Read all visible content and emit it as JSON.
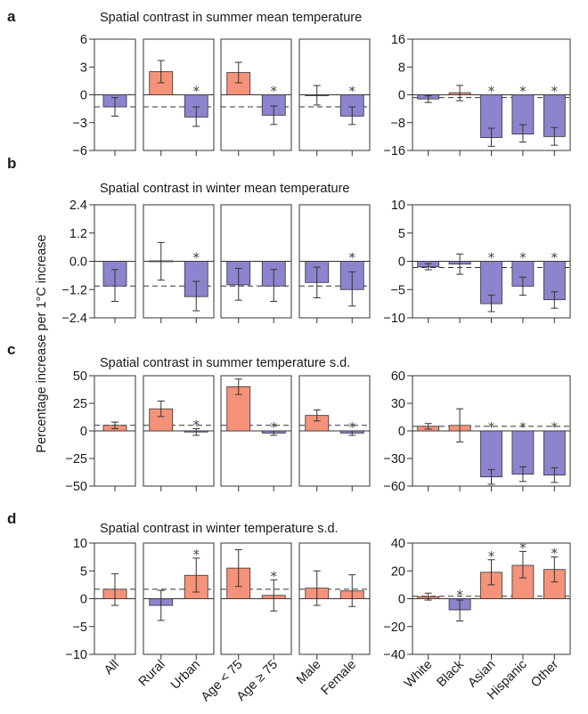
{
  "colors": {
    "positive_bar": "#f4937a",
    "negative_bar": "#8c84cc",
    "neutral_bar": "#f4937a",
    "axis": "#333333"
  },
  "y_axis_label": "Percentage increase per 1°C increase",
  "categories": [
    "All",
    "Rural",
    "Urban",
    "Age < 75",
    "Age ≥ 75",
    "Male",
    "Female",
    "White",
    "Black",
    "Asian",
    "Hispanic",
    "Other"
  ],
  "groups": [
    [
      "All"
    ],
    [
      "Rural",
      "Urban"
    ],
    [
      "Age < 75",
      "Age ≥ 75"
    ],
    [
      "Male",
      "Female"
    ],
    [
      "White",
      "Black",
      "Asian",
      "Hispanic",
      "Other"
    ]
  ],
  "chart_data": [
    {
      "type": "bar",
      "panel": "a",
      "title": "Spatial contrast in summer mean temperature",
      "left_ylim": [
        -6,
        6
      ],
      "left_yticks": [
        6,
        3,
        0,
        -3,
        -6
      ],
      "right_ylim": [
        -16,
        16
      ],
      "right_yticks": [
        16,
        8,
        0,
        -8,
        -16
      ],
      "reference_left": -1.3,
      "reference_right": -0.8,
      "bars": [
        {
          "category": "All",
          "value": -1.3,
          "ci_low": -2.3,
          "ci_high": -0.3,
          "significant": false
        },
        {
          "category": "Rural",
          "value": 2.5,
          "ci_low": 1.3,
          "ci_high": 3.7,
          "significant": false
        },
        {
          "category": "Urban",
          "value": -2.4,
          "ci_low": -3.4,
          "ci_high": -1.3,
          "significant": true
        },
        {
          "category": "Age < 75",
          "value": 2.4,
          "ci_low": 1.3,
          "ci_high": 3.5,
          "significant": false
        },
        {
          "category": "Age ≥ 75",
          "value": -2.2,
          "ci_low": -3.2,
          "ci_high": -1.2,
          "significant": true
        },
        {
          "category": "Male",
          "value": -0.05,
          "ci_low": -1.1,
          "ci_high": 1.0,
          "significant": false
        },
        {
          "category": "Female",
          "value": -2.3,
          "ci_low": -3.2,
          "ci_high": -1.3,
          "significant": true
        },
        {
          "category": "White",
          "value": -1.2,
          "ci_low": -2.2,
          "ci_high": -0.3,
          "significant": false
        },
        {
          "category": "Black",
          "value": 0.6,
          "ci_low": -1.7,
          "ci_high": 2.7,
          "significant": false
        },
        {
          "category": "Asian",
          "value": -12.3,
          "ci_low": -14.8,
          "ci_high": -9.6,
          "significant": true
        },
        {
          "category": "Hispanic",
          "value": -11.3,
          "ci_low": -13.6,
          "ci_high": -8.6,
          "significant": true
        },
        {
          "category": "Other",
          "value": -12.0,
          "ci_low": -14.5,
          "ci_high": -9.4,
          "significant": true
        }
      ]
    },
    {
      "type": "bar",
      "panel": "b",
      "title": "Spatial contrast in winter mean temperature",
      "left_ylim": [
        -2.4,
        2.4
      ],
      "left_yticks": [
        2.4,
        1.2,
        0.0,
        -1.2,
        -2.4
      ],
      "right_ylim": [
        -10,
        10
      ],
      "right_yticks": [
        10,
        5,
        0,
        -5,
        -10
      ],
      "reference_left": -1.05,
      "reference_right": -1.1,
      "bars": [
        {
          "category": "All",
          "value": -1.05,
          "ci_low": -1.7,
          "ci_high": -0.35,
          "significant": false
        },
        {
          "category": "Rural",
          "value": 0.02,
          "ci_low": -0.8,
          "ci_high": 0.8,
          "significant": false
        },
        {
          "category": "Urban",
          "value": -1.5,
          "ci_low": -2.1,
          "ci_high": -0.85,
          "significant": true
        },
        {
          "category": "Age < 75",
          "value": -1.0,
          "ci_low": -1.65,
          "ci_high": -0.3,
          "significant": false
        },
        {
          "category": "Age ≥ 75",
          "value": -1.05,
          "ci_low": -1.7,
          "ci_high": -0.35,
          "significant": false
        },
        {
          "category": "Male",
          "value": -0.9,
          "ci_low": -1.55,
          "ci_high": -0.25,
          "significant": false
        },
        {
          "category": "Female",
          "value": -1.2,
          "ci_low": -1.9,
          "ci_high": -0.45,
          "significant": true
        },
        {
          "category": "White",
          "value": -1.0,
          "ci_low": -1.5,
          "ci_high": -0.4,
          "significant": false
        },
        {
          "category": "Black",
          "value": -0.5,
          "ci_low": -2.3,
          "ci_high": 1.3,
          "significant": false
        },
        {
          "category": "Asian",
          "value": -7.5,
          "ci_low": -8.9,
          "ci_high": -6.0,
          "significant": true
        },
        {
          "category": "Hispanic",
          "value": -4.4,
          "ci_low": -6.0,
          "ci_high": -2.8,
          "significant": true
        },
        {
          "category": "Other",
          "value": -6.8,
          "ci_low": -8.3,
          "ci_high": -5.4,
          "significant": true
        }
      ]
    },
    {
      "type": "bar",
      "panel": "c",
      "title": "Spatial contrast in summer temperature s.d.",
      "left_ylim": [
        -50,
        50
      ],
      "left_yticks": [
        50,
        25,
        0,
        -25,
        -50
      ],
      "right_ylim": [
        -60,
        60
      ],
      "right_yticks": [
        60,
        30,
        0,
        -30,
        -60
      ],
      "reference_left": 5,
      "reference_right": 5,
      "bars": [
        {
          "category": "All",
          "value": 5,
          "ci_low": 2,
          "ci_high": 8,
          "significant": false
        },
        {
          "category": "Rural",
          "value": 20,
          "ci_low": 13,
          "ci_high": 27,
          "significant": false
        },
        {
          "category": "Urban",
          "value": -1,
          "ci_low": -4,
          "ci_high": 2,
          "significant": true
        },
        {
          "category": "Age < 75",
          "value": 40,
          "ci_low": 33,
          "ci_high": 47,
          "significant": false
        },
        {
          "category": "Age ≥ 75",
          "value": -2,
          "ci_low": -4,
          "ci_high": 0,
          "significant": true
        },
        {
          "category": "Male",
          "value": 14,
          "ci_low": 9,
          "ci_high": 19,
          "significant": false
        },
        {
          "category": "Female",
          "value": -2,
          "ci_low": -4,
          "ci_high": 0,
          "significant": true
        },
        {
          "category": "White",
          "value": 5,
          "ci_low": 2,
          "ci_high": 8,
          "significant": false
        },
        {
          "category": "Black",
          "value": 6,
          "ci_low": -12,
          "ci_high": 24,
          "significant": false
        },
        {
          "category": "Asian",
          "value": -50,
          "ci_low": -58,
          "ci_high": -42,
          "significant": true
        },
        {
          "category": "Hispanic",
          "value": -47,
          "ci_low": -55,
          "ci_high": -39,
          "significant": true
        },
        {
          "category": "Other",
          "value": -48,
          "ci_low": -56,
          "ci_high": -40,
          "significant": true
        }
      ]
    },
    {
      "type": "bar",
      "panel": "d",
      "title": "Spatial contrast in winter temperature s.d.",
      "left_ylim": [
        -10,
        10
      ],
      "left_yticks": [
        10,
        5,
        0,
        -5,
        -10
      ],
      "right_ylim": [
        -40,
        40
      ],
      "right_yticks": [
        40,
        20,
        0,
        -20,
        -40
      ],
      "reference_left": 1.7,
      "reference_right": 1.8,
      "bars": [
        {
          "category": "All",
          "value": 1.7,
          "ci_low": -1.2,
          "ci_high": 4.5,
          "significant": false
        },
        {
          "category": "Rural",
          "value": -1.2,
          "ci_low": -3.9,
          "ci_high": 1.5,
          "significant": false
        },
        {
          "category": "Urban",
          "value": 4.2,
          "ci_low": 1.2,
          "ci_high": 7.3,
          "significant": true
        },
        {
          "category": "Age < 75",
          "value": 5.5,
          "ci_low": 2.2,
          "ci_high": 8.8,
          "significant": false
        },
        {
          "category": "Age ≥ 75",
          "value": 0.6,
          "ci_low": -2.2,
          "ci_high": 3.4,
          "significant": true
        },
        {
          "category": "Male",
          "value": 1.9,
          "ci_low": -1.2,
          "ci_high": 5.0,
          "significant": false
        },
        {
          "category": "Female",
          "value": 1.4,
          "ci_low": -1.4,
          "ci_high": 4.3,
          "significant": false
        },
        {
          "category": "White",
          "value": 1.5,
          "ci_low": -1.0,
          "ci_high": 4.0,
          "significant": false
        },
        {
          "category": "Black",
          "value": -8,
          "ci_low": -16,
          "ci_high": -1,
          "significant": true
        },
        {
          "category": "Asian",
          "value": 19,
          "ci_low": 10,
          "ci_high": 28,
          "significant": true
        },
        {
          "category": "Hispanic",
          "value": 24,
          "ci_low": 15,
          "ci_high": 34,
          "significant": true
        },
        {
          "category": "Other",
          "value": 21,
          "ci_low": 12,
          "ci_high": 30,
          "significant": true
        }
      ]
    }
  ]
}
